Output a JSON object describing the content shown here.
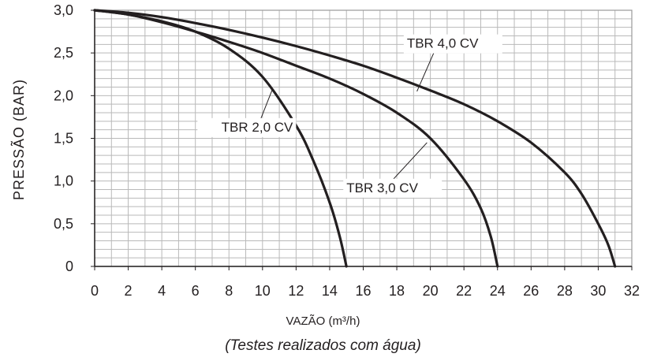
{
  "chart_data": {
    "type": "line",
    "ylabel": "PRESSÃO  (BAR)",
    "xlabel": "VAZÃO (m³/h)",
    "caption": "(Testes realizados com água)",
    "xlim": [
      0,
      32
    ],
    "ylim": [
      0,
      3.0
    ],
    "x_ticks": [
      "0",
      "2",
      "4",
      "6",
      "8",
      "10",
      "12",
      "14",
      "16",
      "18",
      "20",
      "22",
      "24",
      "26",
      "28",
      "30",
      "32"
    ],
    "y_ticks": [
      "0",
      "0,5",
      "1,0",
      "1,5",
      "2,0",
      "2,5",
      "3,0"
    ],
    "grid": true,
    "series": [
      {
        "name": "TBR 2,0 CV",
        "x": [
          0,
          2,
          4,
          6,
          8,
          10,
          12,
          13,
          14,
          14.6,
          15.0
        ],
        "y": [
          3.0,
          2.95,
          2.87,
          2.75,
          2.55,
          2.22,
          1.65,
          1.25,
          0.75,
          0.35,
          0
        ]
      },
      {
        "name": "TBR 3,0 CV",
        "x": [
          0,
          2,
          4,
          6,
          8,
          10,
          12,
          14,
          16,
          18,
          20,
          22,
          23,
          23.6,
          24.0
        ],
        "y": [
          3.0,
          2.95,
          2.86,
          2.75,
          2.63,
          2.5,
          2.35,
          2.2,
          2.02,
          1.8,
          1.5,
          1.02,
          0.68,
          0.35,
          0
        ]
      },
      {
        "name": "TBR 4,0 CV",
        "x": [
          0,
          2,
          4,
          6,
          8,
          10,
          12,
          14,
          16,
          18,
          20,
          22,
          24,
          26,
          28,
          29,
          30,
          30.6,
          31.0
        ],
        "y": [
          3.0,
          2.97,
          2.92,
          2.85,
          2.77,
          2.68,
          2.58,
          2.47,
          2.35,
          2.21,
          2.06,
          1.9,
          1.7,
          1.45,
          1.1,
          0.85,
          0.5,
          0.25,
          0
        ]
      }
    ]
  }
}
